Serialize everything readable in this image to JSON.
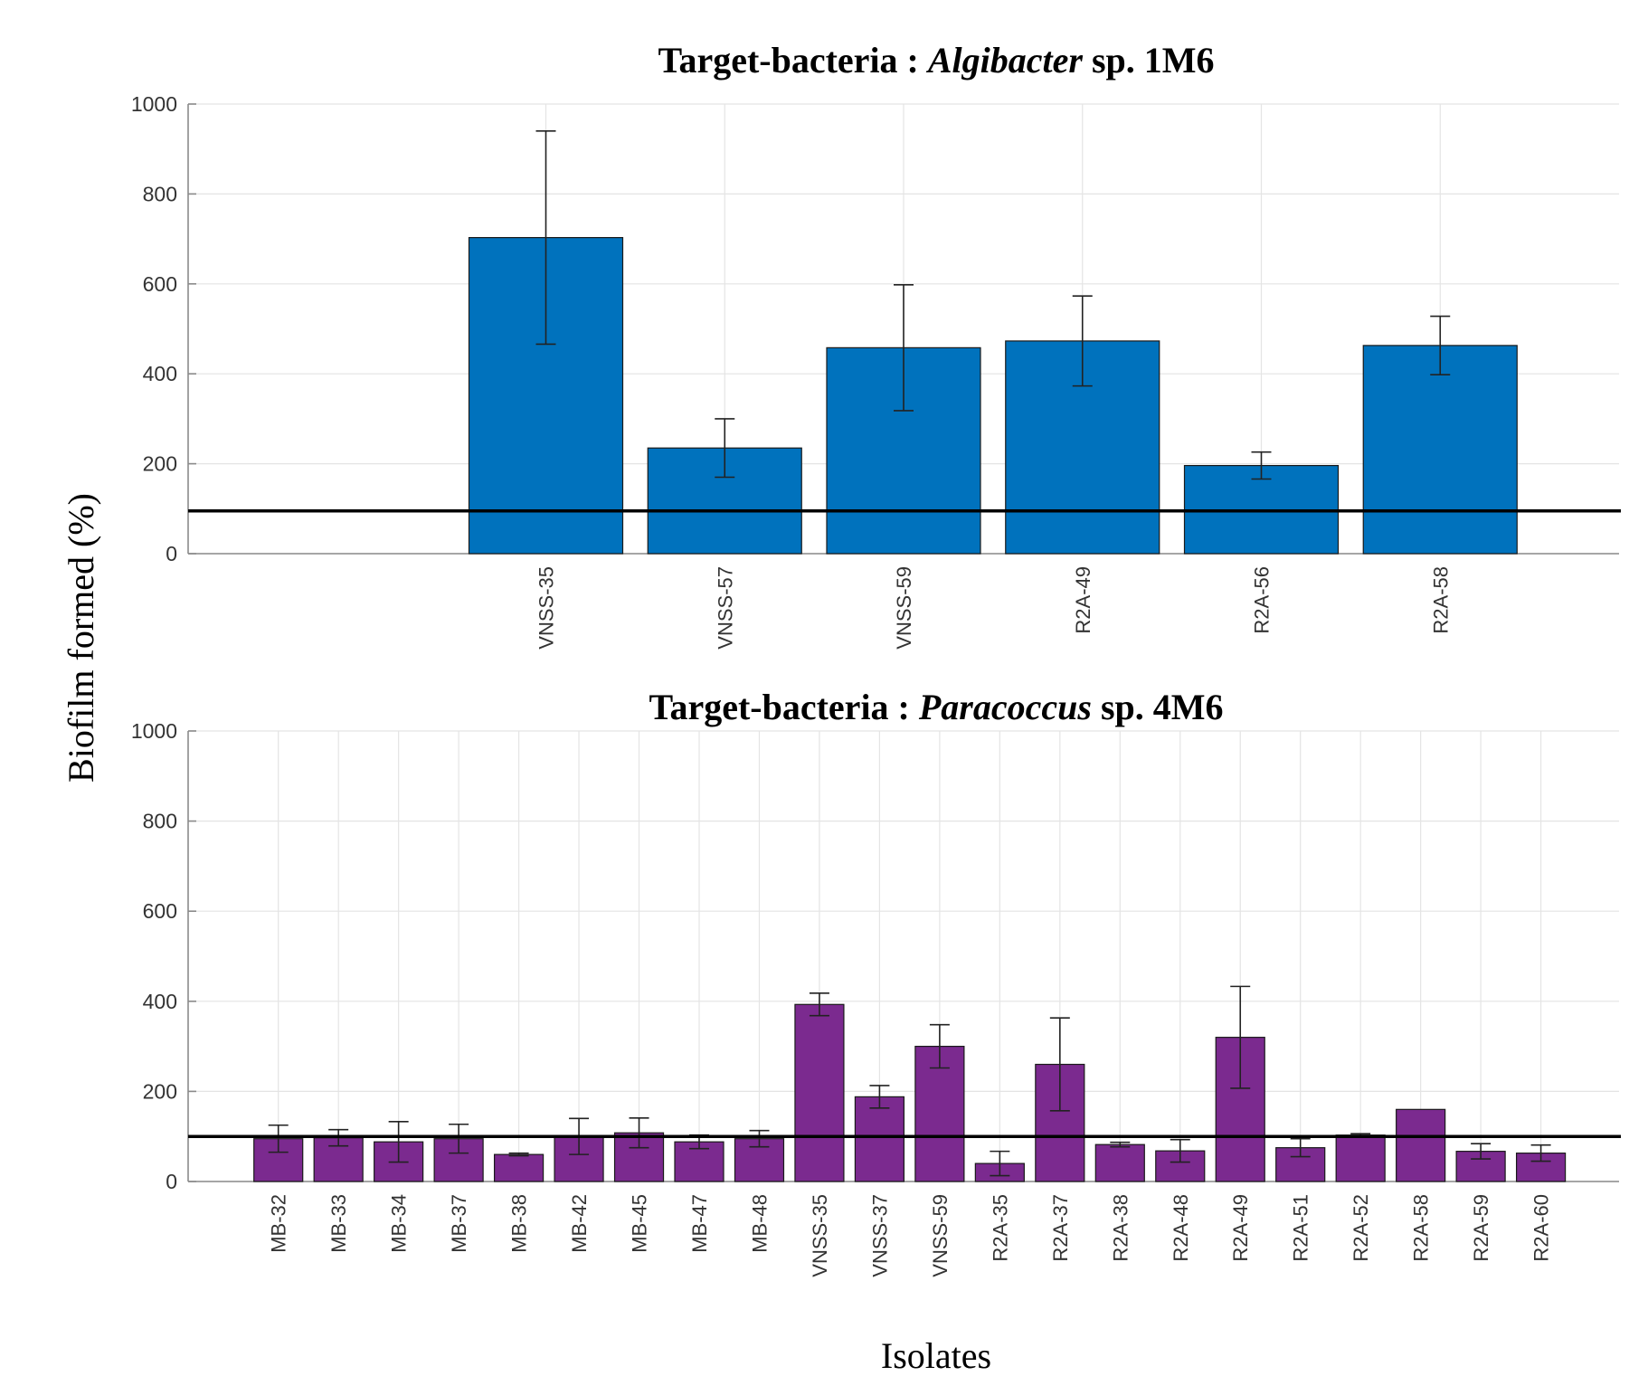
{
  "figure": {
    "ylabel": "Biofilm formed (%)",
    "xlabel": "Isolates"
  },
  "chart_data": [
    {
      "type": "bar",
      "title": {
        "prefix": "Target-bacteria : ",
        "italic": "Algibacter",
        "suffix": " sp. 1M6"
      },
      "categories": [
        "VNSS-35",
        "VNSS-57",
        "VNSS-59",
        "R2A-49",
        "R2A-56",
        "R2A-58"
      ],
      "values": [
        703,
        235,
        458,
        473,
        196,
        463
      ],
      "errors": [
        237,
        65,
        140,
        100,
        30,
        65
      ],
      "ylim": [
        0,
        1000
      ],
      "yticks": [
        "0",
        "200",
        "400",
        "600",
        "800",
        "1000"
      ],
      "xlim": [
        0,
        8
      ],
      "category_positions": [
        2,
        3,
        4,
        5,
        6,
        7
      ],
      "reference_line": 95,
      "bar_color": "#0072bd",
      "grid": true
    },
    {
      "type": "bar",
      "title": {
        "prefix": "Target-bacteria : ",
        "italic": "Paracoccus",
        "suffix": " sp. 4M6"
      },
      "categories": [
        "MB-32",
        "MB-33",
        "MB-34",
        "MB-37",
        "MB-38",
        "MB-42",
        "MB-45",
        "MB-47",
        "MB-48",
        "VNSS-35",
        "VNSS-37",
        "VNSS-59",
        "R2A-35",
        "R2A-37",
        "R2A-38",
        "R2A-48",
        "R2A-49",
        "R2A-51",
        "R2A-52",
        "R2A-58",
        "R2A-59",
        "R2A-60"
      ],
      "values": [
        95,
        97,
        88,
        95,
        60,
        100,
        108,
        88,
        95,
        393,
        188,
        300,
        40,
        260,
        82,
        68,
        320,
        75,
        103,
        160,
        67,
        63
      ],
      "errors": [
        30,
        18,
        45,
        32,
        3,
        40,
        33,
        15,
        18,
        25,
        25,
        48,
        27,
        103,
        5,
        25,
        113,
        20,
        3,
        0,
        17,
        18
      ],
      "ylim": [
        0,
        1000
      ],
      "yticks": [
        "0",
        "200",
        "400",
        "600",
        "800",
        "1000"
      ],
      "xlim": [
        -1.5,
        22.3
      ],
      "category_positions": [
        0,
        1,
        2,
        3,
        4,
        5,
        6,
        7,
        8,
        9,
        10,
        11,
        12,
        13,
        14,
        15,
        16,
        17,
        18,
        19,
        20,
        21
      ],
      "reference_line": 100,
      "bar_color": "#7b2a8f",
      "grid": true
    }
  ]
}
